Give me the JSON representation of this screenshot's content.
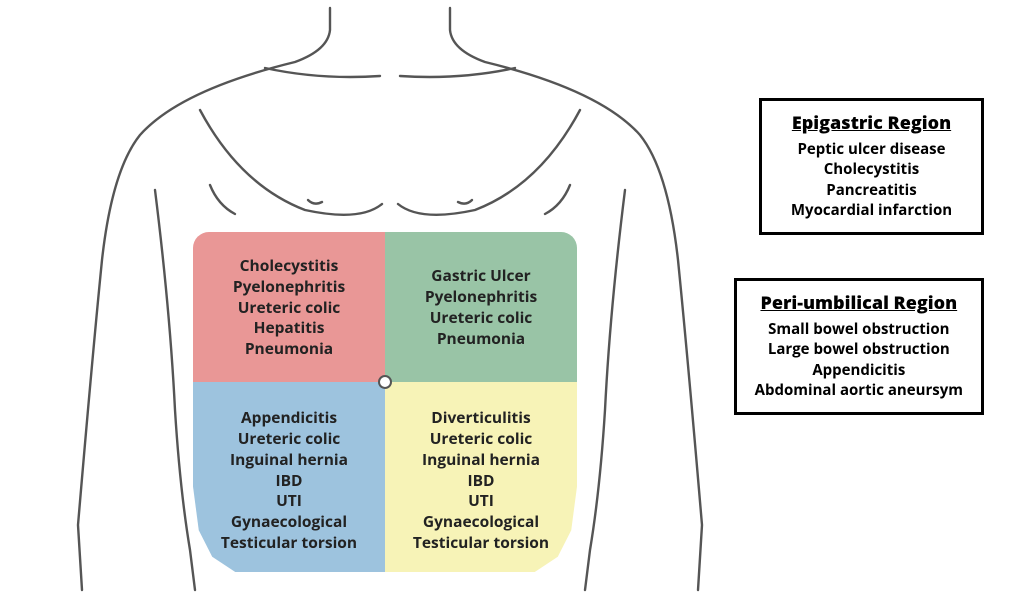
{
  "colors": {
    "ruq": "#e99796",
    "luq": "#99c4a6",
    "rlq": "#9dc3de",
    "llq": "#f7f3b7",
    "outline": "#555555",
    "text": "#222222",
    "boxBorder": "#000000",
    "background": "#ffffff"
  },
  "layout": {
    "type": "infographic",
    "torso_outline_stroke_width": 2.4,
    "quadrant_font_size": 15.5,
    "sidebox_title_font_size": 18,
    "sidebox_item_font_size": 15,
    "font_weight": 700
  },
  "quadrants": {
    "ruq": [
      "Cholecystitis",
      "Pyelonephritis",
      "Ureteric colic",
      "Hepatitis",
      "Pneumonia"
    ],
    "luq": [
      "Gastric Ulcer",
      "Pyelonephritis",
      "Ureteric colic",
      "Pneumonia"
    ],
    "rlq": [
      "Appendicitis",
      "Ureteric colic",
      "Inguinal hernia",
      "IBD",
      "UTI",
      "Gynaecological",
      "Testicular torsion"
    ],
    "llq": [
      "Diverticulitis",
      "Ureteric colic",
      "Inguinal hernia",
      "IBD",
      "UTI",
      "Gynaecological",
      "Testicular torsion"
    ]
  },
  "sideboxes": {
    "epigastric": {
      "title": "Epigastric Region",
      "items": [
        "Peptic ulcer disease",
        "Cholecystitis",
        "Pancreatitis",
        "Myocardial infarction"
      ]
    },
    "periumbilical": {
      "title": "Peri-umbilical Region",
      "items": [
        "Small bowel obstruction",
        "Large bowel obstruction",
        "Appendicitis",
        "Abdominal aortic aneursym"
      ]
    }
  }
}
